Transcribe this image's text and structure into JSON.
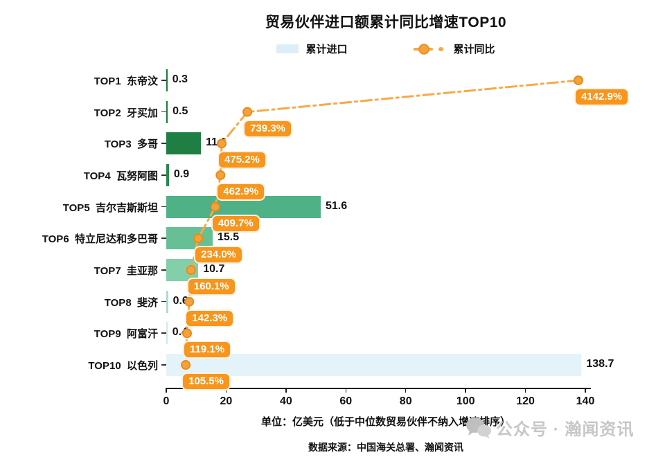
{
  "title": "贸易伙伴进口额累计同比增速TOP10",
  "legend": {
    "bar_label": "累计进口",
    "line_label": "累计同比"
  },
  "chart_data": {
    "type": "bar",
    "orientation": "horizontal",
    "title": "贸易伙伴进口额累计同比增速TOP10",
    "categories": [
      "TOP1  东帝汶",
      "TOP2  牙买加",
      "TOP3  多哥",
      "TOP4  瓦努阿图",
      "TOP5  吉尔吉斯斯坦",
      "TOP6  特立尼达和多巴哥",
      "TOP7  圭亚那",
      "TOP8  斐济",
      "TOP9  阿富汗",
      "TOP10  以色列"
    ],
    "series": [
      {
        "name": "累计进口",
        "unit": "亿美元",
        "values": [
          0.3,
          0.5,
          11.6,
          0.9,
          51.6,
          15.5,
          10.7,
          0.6,
          0.4,
          138.7
        ],
        "value_labels": [
          "0.3",
          "0.5",
          "11.6",
          "0.9",
          "51.6",
          "15.5",
          "10.7",
          "0.6",
          "0.4",
          "138.7"
        ]
      },
      {
        "name": "累计同比",
        "unit": "%",
        "values": [
          4142.9,
          739.3,
          475.2,
          462.9,
          409.7,
          234.0,
          160.1,
          142.3,
          119.1,
          105.5
        ],
        "value_labels": [
          "4142.9%",
          "739.3%",
          "475.2%",
          "462.9%",
          "409.7%",
          "234.0%",
          "160.1%",
          "142.3%",
          "119.1%",
          "105.5%"
        ]
      }
    ],
    "x_axis": {
      "min": 0,
      "max": 140,
      "ticks": [
        0,
        20,
        40,
        60,
        80,
        100,
        120,
        140
      ]
    },
    "grid": false,
    "legend_position": "top",
    "bar_colors": [
      "#1b7a40",
      "#1b7a40",
      "#1f7e43",
      "#27894d",
      "#4fb286",
      "#67c095",
      "#83cfa9",
      "#abdfc9",
      "#cdece1",
      "#e4f3fa"
    ],
    "line_color": "#f9a845",
    "marker_fill": "#f6a23c",
    "marker_stroke": "#e88c17",
    "pct_label_bg": "#f7951d",
    "legend_bar_color": "#ddeef6"
  },
  "footer": {
    "unit_note": "单位：亿美元（低于中位数贸易伙伴不纳入增速排序）",
    "source": "数据来源：中国海关总署、瀚闻资讯"
  },
  "watermark": {
    "text": "公众号 · 瀚闻资讯"
  }
}
